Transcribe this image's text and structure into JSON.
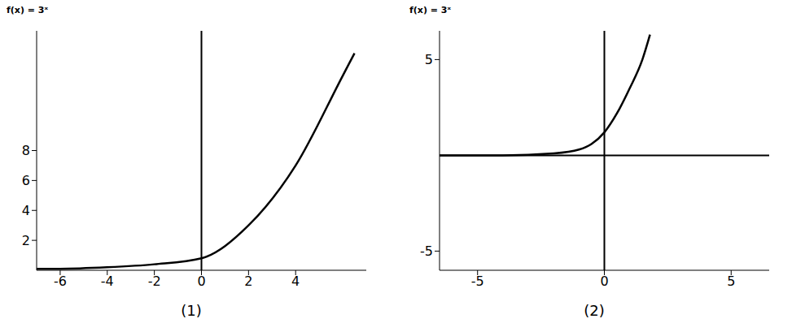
{
  "chart_data": [
    {
      "type": "line",
      "title": "f(x) = 3ˣ",
      "caption": "(1)",
      "x": [
        -7,
        -6,
        -4,
        -2,
        0,
        2,
        4,
        6,
        6.5
      ],
      "values": [
        0.1,
        0.1,
        0.2,
        0.4,
        0.8,
        3,
        7,
        13,
        14.5
      ],
      "color": "#000000",
      "marker": "none",
      "xlim": [
        -7,
        7
      ],
      "ylim": [
        0,
        16
      ],
      "xticks": [
        -6,
        -4,
        -2,
        0,
        2,
        4
      ],
      "yticks": [
        2,
        4,
        6,
        8
      ]
    },
    {
      "type": "line",
      "title": "f(x) = 3ˣ",
      "caption": "(2)",
      "x": [
        -6.5,
        -4,
        -2,
        -1,
        -0.5,
        0,
        0.5,
        1,
        1.5,
        1.8
      ],
      "values": [
        0,
        0,
        0.1,
        0.3,
        0.6,
        1.2,
        2.2,
        3.5,
        5,
        6.3
      ],
      "color": "#000000",
      "marker": "none",
      "xlim": [
        -6.5,
        6.5
      ],
      "ylim": [
        -6,
        6.5
      ],
      "xticks": [
        -5,
        0,
        5
      ],
      "yticks": [
        -5,
        5
      ]
    }
  ]
}
